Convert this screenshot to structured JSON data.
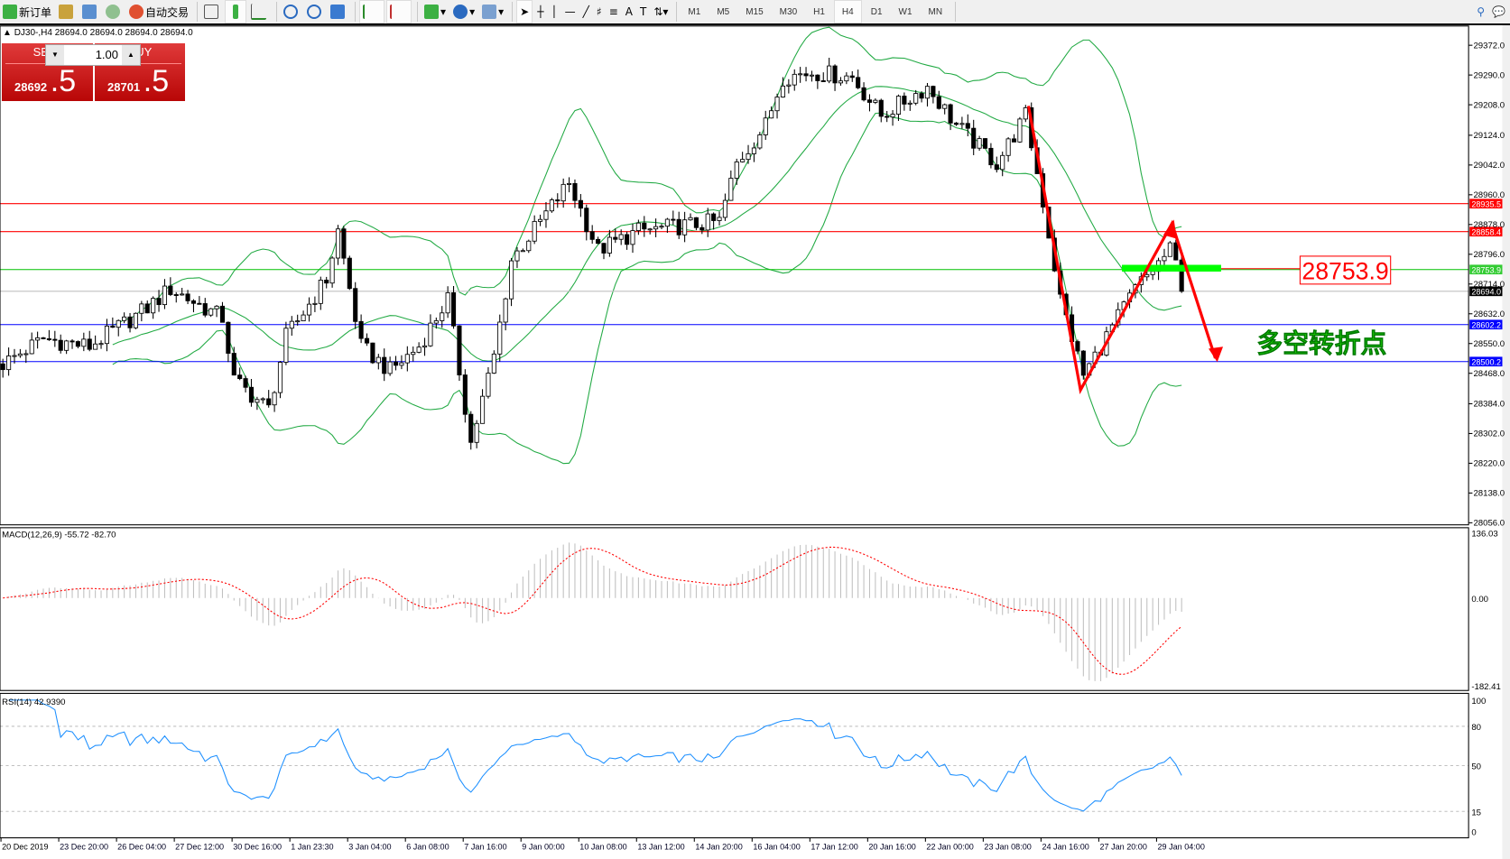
{
  "toolbar": {
    "new_order": "新订单",
    "auto_trading": "自动交易",
    "timeframes": [
      "M1",
      "M5",
      "M15",
      "M30",
      "H1",
      "H4",
      "D1",
      "W1",
      "MN"
    ],
    "active_timeframe": "H4"
  },
  "chart_header": "DJ30-,H4  28694.0 28694.0 28694.0 28694.0",
  "trade_panel": {
    "sell_label": "SELL",
    "buy_label": "BUY",
    "quantity": "1.00",
    "sell_price_main": "28692",
    "sell_price_big": ".5",
    "buy_price_main": "28701",
    "buy_price_big": ".5"
  },
  "chart_data": {
    "type": "candlestick",
    "symbol": "DJ30-",
    "timeframe": "H4",
    "price_ticks": [
      "29372.0",
      "29290.0",
      "29208.0",
      "29124.0",
      "29042.0",
      "28960.0",
      "28878.0",
      "28796.0",
      "28714.0",
      "28632.0",
      "28550.0",
      "28468.0",
      "28384.0",
      "28302.0",
      "28220.0",
      "28138.0",
      "28056.0"
    ],
    "date_labels": [
      "20 Dec 2019",
      "23 Dec 20:00",
      "26 Dec 04:00",
      "27 Dec 12:00",
      "30 Dec 16:00",
      "1 Jan 23:30",
      "3 Jan 04:00",
      "6 Jan 08:00",
      "7 Jan 16:00",
      "9 Jan 00:00",
      "10 Jan 08:00",
      "13 Jan 12:00",
      "14 Jan 20:00",
      "16 Jan 04:00",
      "17 Jan 12:00",
      "20 Jan 16:00",
      "22 Jan 00:00",
      "23 Jan 08:00",
      "24 Jan 16:00",
      "27 Jan 20:00",
      "29 Jan 04:00"
    ],
    "price_path": [
      [
        0,
        28494
      ],
      [
        7,
        28563
      ],
      [
        15,
        28542
      ],
      [
        25,
        28648
      ],
      [
        29,
        28701
      ],
      [
        38,
        28621
      ],
      [
        40,
        28449
      ],
      [
        46,
        28369
      ],
      [
        49,
        28568
      ],
      [
        56,
        28727
      ],
      [
        58,
        28860
      ],
      [
        62,
        28542
      ],
      [
        67,
        28475
      ],
      [
        72,
        28542
      ],
      [
        77,
        28674
      ],
      [
        81,
        28276
      ],
      [
        85,
        28515
      ],
      [
        88,
        28780
      ],
      [
        93,
        28886
      ],
      [
        98,
        28993
      ],
      [
        103,
        28807
      ],
      [
        110,
        28860
      ],
      [
        117,
        28873
      ],
      [
        124,
        28886
      ],
      [
        127,
        29046
      ],
      [
        132,
        29152
      ],
      [
        135,
        29284
      ],
      [
        140,
        29298
      ],
      [
        147,
        29284
      ],
      [
        152,
        29178
      ],
      [
        160,
        29258
      ],
      [
        165,
        29152
      ],
      [
        172,
        29046
      ],
      [
        177,
        29178
      ],
      [
        180,
        28940
      ],
      [
        183,
        28674
      ],
      [
        187,
        28462
      ],
      [
        192,
        28595
      ],
      [
        196,
        28701
      ],
      [
        202,
        28807
      ],
      [
        205,
        28694
      ]
    ],
    "horizontal_lines": [
      {
        "price": "28935.5",
        "color": "#ff0000"
      },
      {
        "price": "28858.4",
        "color": "#ff0000"
      },
      {
        "price": "28753.9",
        "color": "#00c000"
      },
      {
        "price": "28694.0",
        "color": "#000000"
      },
      {
        "price": "28602.2",
        "color": "#0000ff"
      },
      {
        "price": "28500.2",
        "color": "#0000ff"
      }
    ],
    "annotation_price": "28753.9",
    "annotation_text": "多空转折点",
    "indicators": {
      "bollinger": {
        "color": "#22aa44"
      },
      "macd": {
        "label": "MACD(12,26,9) -55.72 -82.70",
        "ticks": [
          "136.03",
          "0.00",
          "-182.41"
        ],
        "max": 136.03,
        "min": -182.41
      },
      "rsi": {
        "label": "RSI(14) 42.9390",
        "ticks": [
          "100",
          "80",
          "50",
          "15",
          "0"
        ],
        "color": "#1e90ff"
      }
    }
  }
}
